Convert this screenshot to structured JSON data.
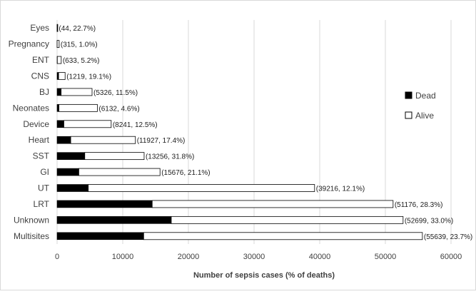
{
  "chart_data": {
    "type": "bar",
    "stacked": true,
    "orientation": "horizontal",
    "categories": [
      "Eyes",
      "Pregnancy",
      "ENT",
      "CNS",
      "BJ",
      "Neonates",
      "Device",
      "Heart",
      "SST",
      "GI",
      "UT",
      "LRT",
      "Unknown",
      "Multisites"
    ],
    "totals": [
      44,
      315,
      633,
      1219,
      5326,
      6132,
      8241,
      11927,
      13256,
      15676,
      39216,
      51176,
      52699,
      55639
    ],
    "death_pct": [
      22.7,
      1.0,
      5.2,
      19.1,
      11.5,
      4.6,
      12.5,
      17.4,
      31.8,
      21.1,
      12.1,
      28.3,
      33.0,
      23.7
    ],
    "data_labels": [
      "(44, 22.7%)",
      "(315, 1.0%)",
      "(633, 5.2%)",
      "(1219, 19.1%)",
      "(5326, 11.5%)",
      "(6132, 4.6%)",
      "(8241, 12.5%)",
      "(11927, 17.4%)",
      "(13256, 31.8%)",
      "(15676, 21.1%)",
      "(39216, 12.1%)",
      "(51176, 28.3%)",
      "(52699, 33.0%)",
      "(55639, 23.7%)"
    ],
    "series": [
      {
        "name": "Dead",
        "color": "#000000",
        "values": [
          10,
          3,
          33,
          233,
          612,
          282,
          1030,
          2075,
          4215,
          3308,
          4745,
          14483,
          17391,
          13186
        ]
      },
      {
        "name": "Alive",
        "color": "#ffffff",
        "values": [
          34,
          312,
          600,
          986,
          4714,
          5850,
          7211,
          9852,
          9041,
          12368,
          34471,
          36693,
          35308,
          42453
        ]
      }
    ],
    "xlabel": "Number of sepsis cases (% of deaths)",
    "ylabel": "",
    "xlim": [
      0,
      60000
    ],
    "xticks": [
      "0",
      "10000",
      "20000",
      "30000",
      "40000",
      "50000",
      "60000"
    ],
    "xtick_values": [
      0,
      10000,
      20000,
      30000,
      40000,
      50000,
      60000
    ],
    "grid": "vertical",
    "legend_position": "right",
    "colors": {
      "grid": "#d9d9d9",
      "frame": "#d9d9d9",
      "bar_outline": "#000000",
      "text": "#404040"
    }
  }
}
